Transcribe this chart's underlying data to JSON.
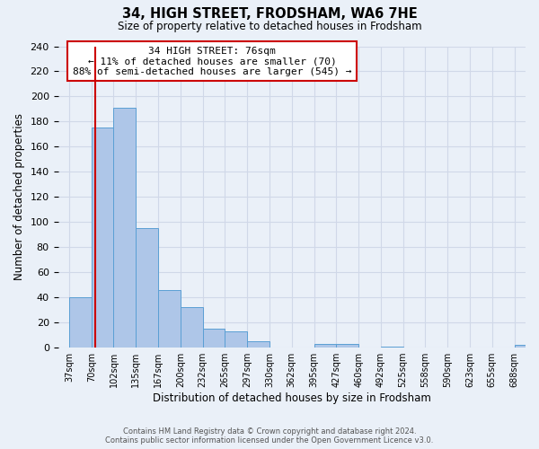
{
  "title": "34, HIGH STREET, FRODSHAM, WA6 7HE",
  "subtitle": "Size of property relative to detached houses in Frodsham",
  "xlabel": "Distribution of detached houses by size in Frodsham",
  "ylabel": "Number of detached properties",
  "footer_line1": "Contains HM Land Registry data © Crown copyright and database right 2024.",
  "footer_line2": "Contains public sector information licensed under the Open Government Licence v3.0.",
  "bin_labels": [
    "37sqm",
    "70sqm",
    "102sqm",
    "135sqm",
    "167sqm",
    "200sqm",
    "232sqm",
    "265sqm",
    "297sqm",
    "330sqm",
    "362sqm",
    "395sqm",
    "427sqm",
    "460sqm",
    "492sqm",
    "525sqm",
    "558sqm",
    "590sqm",
    "623sqm",
    "655sqm",
    "688sqm"
  ],
  "bar_heights": [
    40,
    175,
    191,
    95,
    46,
    32,
    15,
    13,
    5,
    0,
    0,
    3,
    3,
    0,
    1,
    0,
    0,
    0,
    0,
    0,
    2
  ],
  "bar_color": "#aec6e8",
  "bar_edge_color": "#5a9fd4",
  "marker_line_color": "#cc0000",
  "annotation_text": "34 HIGH STREET: 76sqm\n← 11% of detached houses are smaller (70)\n88% of semi-detached houses are larger (545) →",
  "annotation_box_color": "#ffffff",
  "annotation_box_edge": "#cc0000",
  "ylim": [
    0,
    240
  ],
  "yticks": [
    0,
    20,
    40,
    60,
    80,
    100,
    120,
    140,
    160,
    180,
    200,
    220,
    240
  ],
  "grid_color": "#d0d8e8",
  "background_color": "#eaf0f8"
}
